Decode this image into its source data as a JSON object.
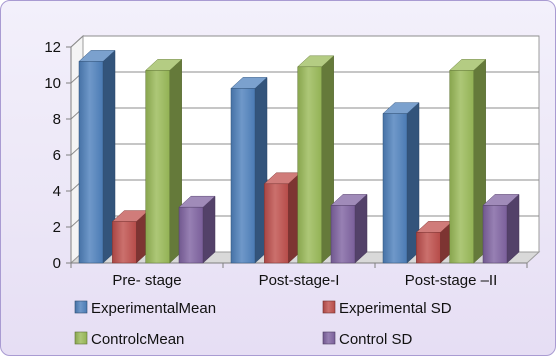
{
  "chart_data": {
    "type": "bar",
    "style": "3d-clustered-column",
    "categories": [
      "Pre- stage",
      "Post-stage-I",
      "Post-stage –II"
    ],
    "series": [
      {
        "name": "ExperimentalMean",
        "values": [
          11.2,
          9.7,
          8.3
        ],
        "color": "#4f81bd"
      },
      {
        "name": "Experimental SD",
        "values": [
          2.3,
          4.4,
          1.7
        ],
        "color": "#c0504d"
      },
      {
        "name": "ControlcMean",
        "values": [
          10.7,
          10.9,
          10.7
        ],
        "color": "#9bbb59"
      },
      {
        "name": "Control SD",
        "values": [
          3.1,
          3.2,
          3.2
        ],
        "color": "#8064a2"
      }
    ],
    "ylim": [
      0,
      12
    ],
    "yticks": [
      0,
      2,
      4,
      6,
      8,
      10,
      12
    ],
    "grid": true,
    "legend_position": "bottom"
  }
}
